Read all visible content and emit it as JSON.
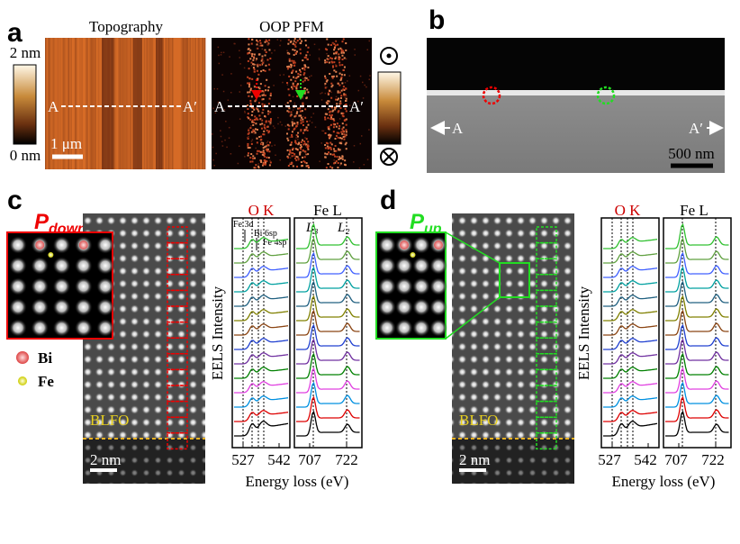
{
  "panels": {
    "a": {
      "label": "a",
      "topography_title": "Topography",
      "pfm_title": "OOP PFM",
      "colorbar_max": "2 nm",
      "colorbar_min": "0 nm",
      "topo_line_start": "A",
      "topo_line_end": "A′",
      "scale_bar": "1 μm",
      "pfm_line_start": "A",
      "pfm_line_end": "A′"
    },
    "b": {
      "label": "b",
      "line_start": "A",
      "line_end": "A′",
      "scale_bar": "500 nm"
    },
    "c": {
      "label": "c",
      "polarization_symbol": "P",
      "polarization_subscript": "down",
      "legend": [
        "Bi",
        "Fe"
      ],
      "layer_label": "BLFO",
      "scale_bar": "2 nm",
      "edge_o": "O K",
      "edge_fe": "Fe L",
      "peak_labels": [
        "Fe 3d",
        "Bi 6sp",
        "Fe 4sp"
      ],
      "l3": "L₃",
      "l2": "L₂",
      "y_axis_label": "EELS Intensity",
      "x_ticks": [
        "527",
        "542",
        "707",
        "722"
      ],
      "x_axis_label": "Energy loss (eV)"
    },
    "d": {
      "label": "d",
      "polarization_symbol": "P",
      "polarization_subscript": "up",
      "layer_label": "BLFO",
      "scale_bar": "2 nm",
      "edge_o": "O K",
      "edge_fe": "Fe L",
      "y_axis_label": "EELS Intensity",
      "x_ticks": [
        "527",
        "542",
        "707",
        "722"
      ],
      "x_axis_label": "Energy loss (eV)"
    }
  }
}
